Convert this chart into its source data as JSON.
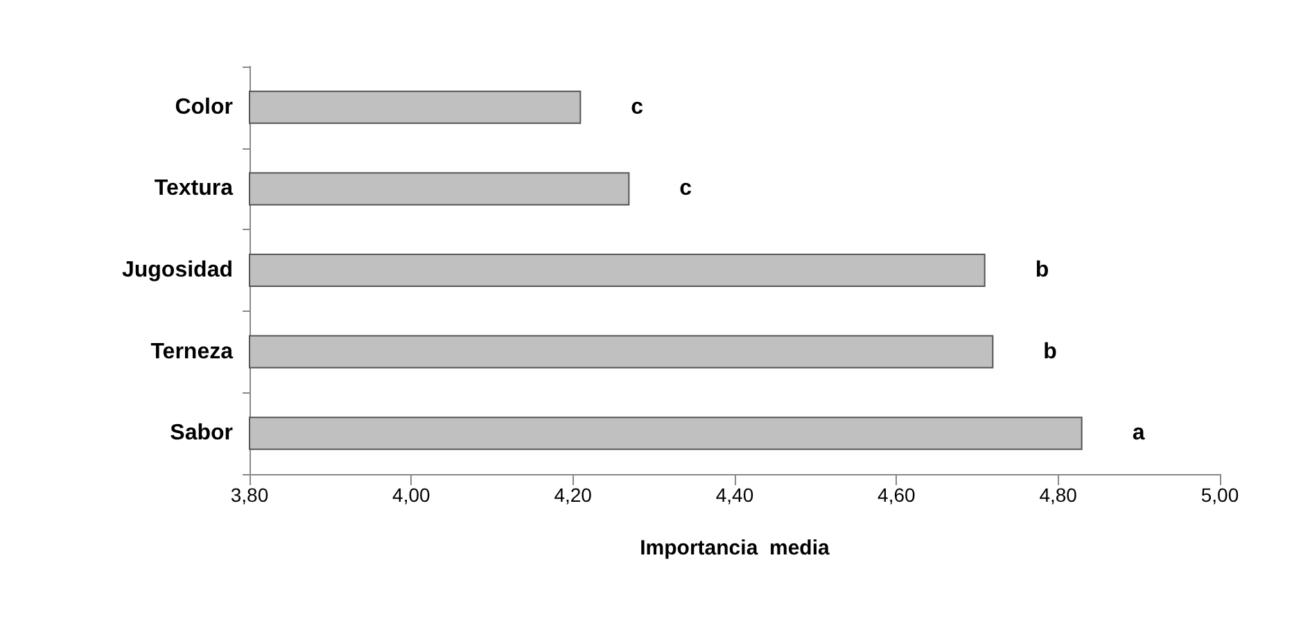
{
  "chart_data": {
    "type": "bar",
    "orientation": "horizontal",
    "categories": [
      "Color",
      "Textura",
      "Jugosidad",
      "Terneza",
      "Sabor"
    ],
    "values": [
      4.21,
      4.27,
      4.71,
      4.72,
      4.83
    ],
    "color": "#c0c0c0",
    "xlabel": "Importancia  media",
    "xlim": [
      3.8,
      5.0
    ],
    "xticks": [
      {
        "value": 3.8,
        "label": "3,80"
      },
      {
        "value": 4.0,
        "label": "4,00"
      },
      {
        "value": 4.2,
        "label": "4,20"
      },
      {
        "value": 4.4,
        "label": "4,40"
      },
      {
        "value": 4.6,
        "label": "4,60"
      },
      {
        "value": 4.8,
        "label": "4,80"
      },
      {
        "value": 5.0,
        "label": "5,00"
      }
    ],
    "grid": false,
    "annotations": [
      "c",
      "c",
      "b",
      "b",
      "a"
    ]
  }
}
